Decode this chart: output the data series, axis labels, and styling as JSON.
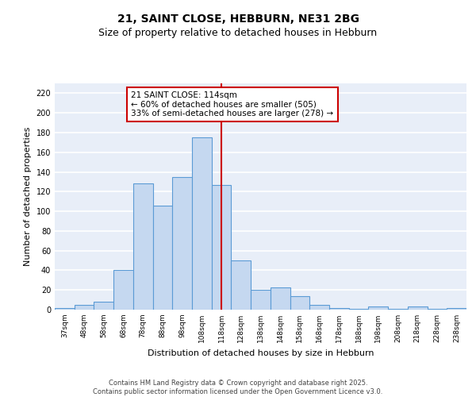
{
  "title": "21, SAINT CLOSE, HEBBURN, NE31 2BG",
  "subtitle": "Size of property relative to detached houses in Hebburn",
  "xlabel": "Distribution of detached houses by size in Hebburn",
  "ylabel": "Number of detached properties",
  "categories": [
    "37sqm",
    "48sqm",
    "58sqm",
    "68sqm",
    "78sqm",
    "88sqm",
    "98sqm",
    "108sqm",
    "118sqm",
    "128sqm",
    "138sqm",
    "148sqm",
    "158sqm",
    "168sqm",
    "178sqm",
    "188sqm",
    "198sqm",
    "208sqm",
    "218sqm",
    "228sqm",
    "238sqm"
  ],
  "bar_values": [
    2,
    5,
    8,
    40,
    128,
    106,
    135,
    175,
    127,
    50,
    20,
    23,
    14,
    5,
    2,
    1,
    3,
    1,
    3,
    1,
    2
  ],
  "bar_color": "#c5d8f0",
  "bar_edge_color": "#5b9bd5",
  "bar_edge_width": 0.8,
  "vline_x_index": 8,
  "vline_color": "#cc0000",
  "annotation_text": "21 SAINT CLOSE: 114sqm\n← 60% of detached houses are smaller (505)\n33% of semi-detached houses are larger (278) →",
  "annotation_box_color": "#ffffff",
  "annotation_box_edge_color": "#cc0000",
  "ylim": [
    0,
    230
  ],
  "yticks": [
    0,
    20,
    40,
    60,
    80,
    100,
    120,
    140,
    160,
    180,
    200,
    220
  ],
  "bg_color": "#e8eef8",
  "grid_color": "#ffffff",
  "footer_text": "Contains HM Land Registry data © Crown copyright and database right 2025.\nContains public sector information licensed under the Open Government Licence v3.0.",
  "title_fontsize": 10,
  "subtitle_fontsize": 9,
  "xlabel_fontsize": 8,
  "ylabel_fontsize": 8,
  "tick_fontsize": 6.5,
  "annotation_fontsize": 7.5,
  "footer_fontsize": 6
}
